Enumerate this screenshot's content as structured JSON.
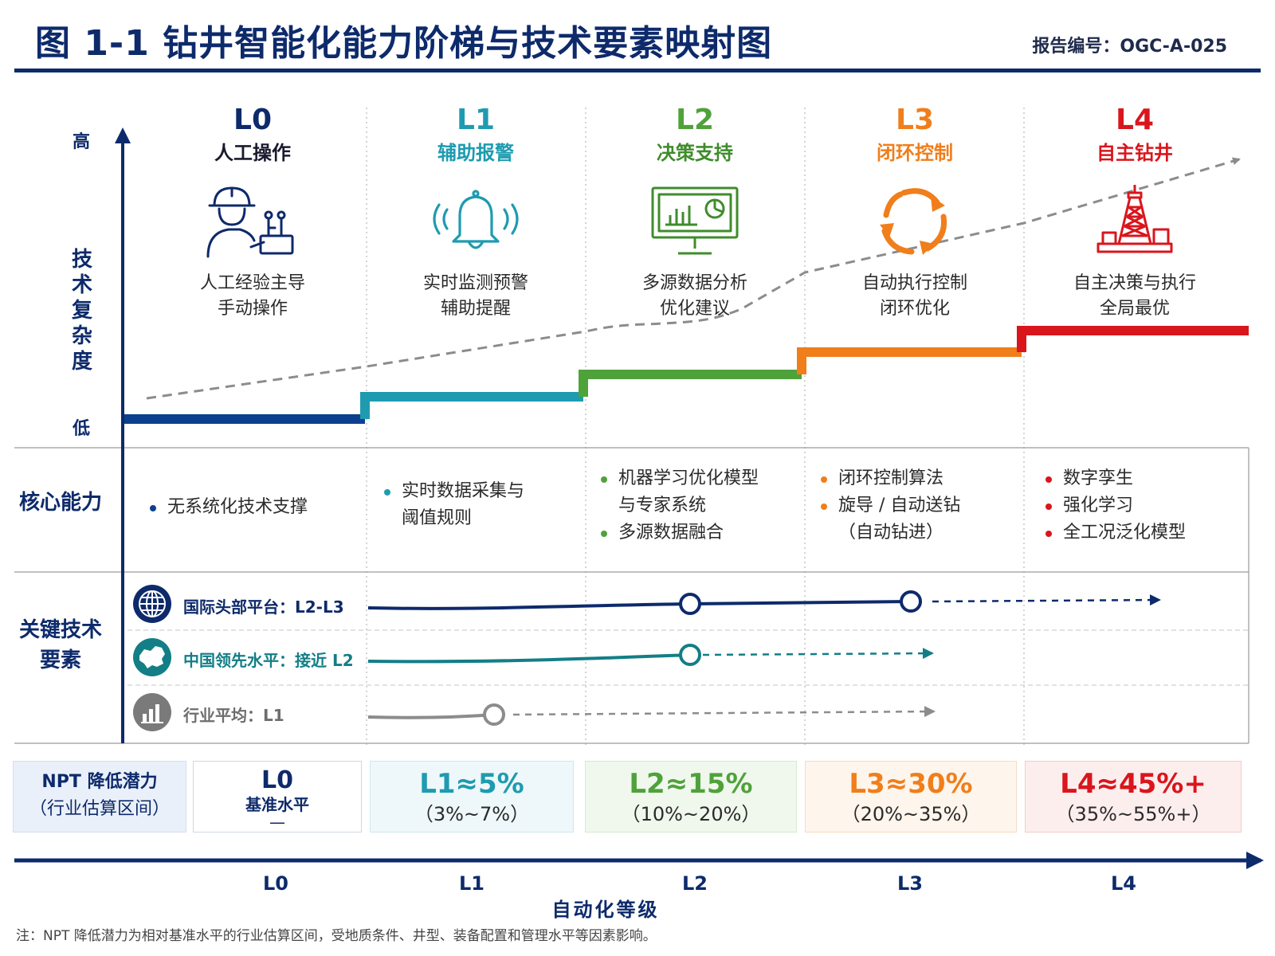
{
  "header": {
    "title": "图 1-1  钻井智能化能力阶梯与技术要素映射图",
    "report_id": "报告编号：OGC-A-025"
  },
  "y_axis": {
    "label": "技术复杂度",
    "high": "高",
    "low": "低"
  },
  "levels": [
    {
      "code": "L0",
      "name": "人工操作",
      "desc1": "人工经验主导",
      "desc2": "手动操作",
      "color": "#0d3f8f",
      "icon": "worker-icon"
    },
    {
      "code": "L1",
      "name": "辅助报警",
      "desc1": "实时监测预警",
      "desc2": "辅助提醒",
      "color": "#1e9bb0",
      "icon": "alarm-bell-icon"
    },
    {
      "code": "L2",
      "name": "决策支持",
      "desc1": "多源数据分析",
      "desc2": "优化建议",
      "color": "#4fa23a",
      "icon": "dashboard-monitor-icon"
    },
    {
      "code": "L3",
      "name": "闭环控制",
      "desc1": "自动执行控制",
      "desc2": "闭环优化",
      "color": "#f07e1b",
      "icon": "closed-loop-arrows-icon"
    },
    {
      "code": "L4",
      "name": "自主钻井",
      "desc1": "自主决策与执行",
      "desc2": "全局最优",
      "color": "#d9161c",
      "icon": "drilling-rig-icon"
    }
  ],
  "rows": {
    "core_capability": "核心能力",
    "key_tech_line1": "关键技术",
    "key_tech_line2": "要素"
  },
  "capabilities": [
    [
      "无系统化技术支撑"
    ],
    [
      "实时数据采集与",
      "阈值规则"
    ],
    [
      "机器学习优化模型",
      "与专家系统",
      "多源数据融合"
    ],
    [
      "闭环控制算法",
      "旋导 / 自动送钻",
      "（自动钻进）"
    ],
    [
      "数字孪生",
      "强化学习",
      "全工况泛化模型"
    ]
  ],
  "tech_elements": [
    {
      "label": "国际头部平台：L2-L3",
      "color": "#0d2a6b",
      "icon": "globe-icon"
    },
    {
      "label": "中国领先水平：接近 L2",
      "color": "#137e86",
      "icon": "china-map-icon"
    },
    {
      "label": "行业平均：L1",
      "color": "#7a7a7a",
      "icon": "bar-chart-icon"
    }
  ],
  "npt": {
    "header_line1": "NPT 降低潜力",
    "header_line2": "（行业估算区间）",
    "cells": [
      {
        "main": "L0",
        "sub": "基准水平",
        "sub2": "—",
        "color": "#0d2a6b",
        "bg": "#ffffff"
      },
      {
        "main": "L1≈5%",
        "sub": "（3%~7%）",
        "color": "#1e9bb0",
        "bg": "#eef8fa"
      },
      {
        "main": "L2≈15%",
        "sub": "（10%~20%）",
        "color": "#4fa23a",
        "bg": "#f0f8ee"
      },
      {
        "main": "L3≈30%",
        "sub": "（20%~35%）",
        "color": "#f07e1b",
        "bg": "#fef5ec"
      },
      {
        "main": "L4≈45%+",
        "sub": "（35%~55%+）",
        "color": "#d9161c",
        "bg": "#fdeeee"
      }
    ]
  },
  "x_axis": {
    "title": "自动化等级",
    "ticks": [
      "L0",
      "L1",
      "L2",
      "L3",
      "L4"
    ]
  },
  "footnote": "注：NPT 降低潜力为相对基准水平的行业估算区间，受地质条件、井型、装备配置和管理水平等因素影响。"
}
